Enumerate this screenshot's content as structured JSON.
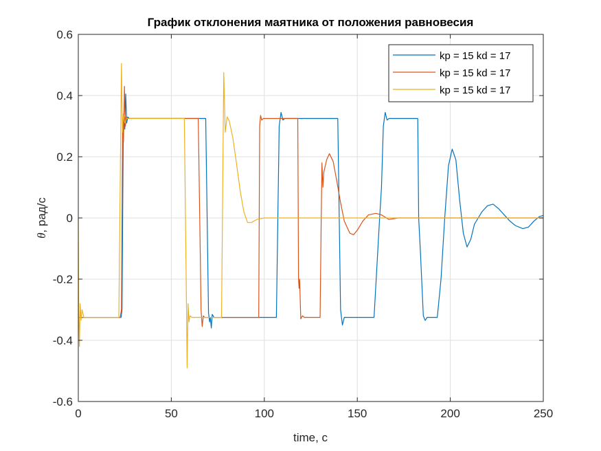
{
  "chart_data": {
    "type": "line",
    "title": "График отклонения маятника от положения равновесия",
    "xlabel": "time, c",
    "ylabel_symbol": "θ",
    "ylabel_rest": ", рад/с",
    "xlim": [
      0,
      250
    ],
    "ylim": [
      -0.6,
      0.6
    ],
    "xticks": [
      0,
      50,
      100,
      150,
      200,
      250
    ],
    "xtick_labels": [
      "0",
      "50",
      "100",
      "150",
      "200",
      "250"
    ],
    "yticks": [
      -0.6,
      -0.4,
      -0.2,
      0,
      0.2,
      0.4,
      0.6
    ],
    "ytick_labels": [
      "-0.6",
      "-0.4",
      "-0.2",
      "0",
      "0.2",
      "0.4",
      "0.6"
    ],
    "grid": true,
    "legend_position": "top-right",
    "series": [
      {
        "name": "kp = 15 kd = 17",
        "color": "#0072BD",
        "points": [
          [
            0,
            -0.325
          ],
          [
            23,
            -0.325
          ],
          [
            23.5,
            -0.3
          ],
          [
            24.2,
            0.3
          ],
          [
            24.6,
            0.33
          ],
          [
            25.0,
            0.29
          ],
          [
            25.5,
            0.405
          ],
          [
            26.0,
            0.31
          ],
          [
            26.6,
            0.33
          ],
          [
            27.5,
            0.325
          ],
          [
            68.5,
            0.325
          ],
          [
            70.0,
            -0.31
          ],
          [
            70.6,
            -0.34
          ],
          [
            71.0,
            -0.325
          ],
          [
            71.5,
            -0.36
          ],
          [
            72.0,
            -0.315
          ],
          [
            73.0,
            -0.325
          ],
          [
            106.5,
            -0.325
          ],
          [
            108.0,
            0.3
          ],
          [
            109.0,
            0.345
          ],
          [
            110.0,
            0.32
          ],
          [
            111.0,
            0.325
          ],
          [
            139.5,
            0.325
          ],
          [
            141.0,
            -0.3
          ],
          [
            142.0,
            -0.35
          ],
          [
            143.0,
            -0.325
          ],
          [
            159.0,
            -0.325
          ],
          [
            162.0,
            0.0
          ],
          [
            163.0,
            0.1
          ],
          [
            164.0,
            0.3
          ],
          [
            165.0,
            0.345
          ],
          [
            166.0,
            0.32
          ],
          [
            167.0,
            0.325
          ],
          [
            182.5,
            0.325
          ],
          [
            183.0,
            0.0
          ],
          [
            183.5,
            -0.06
          ],
          [
            184.0,
            -0.12
          ],
          [
            185.5,
            -0.32
          ],
          [
            186.5,
            -0.335
          ],
          [
            187.5,
            -0.325
          ],
          [
            193.0,
            -0.325
          ],
          [
            195.0,
            -0.2
          ],
          [
            197.0,
            0.0
          ],
          [
            199.0,
            0.17
          ],
          [
            201.0,
            0.225
          ],
          [
            203.0,
            0.19
          ],
          [
            205.0,
            0.06
          ],
          [
            207.0,
            -0.05
          ],
          [
            209.0,
            -0.095
          ],
          [
            211.0,
            -0.07
          ],
          [
            213.0,
            -0.02
          ],
          [
            215.0,
            0.0
          ],
          [
            217.0,
            0.02
          ],
          [
            220.0,
            0.04
          ],
          [
            223.0,
            0.045
          ],
          [
            226.0,
            0.03
          ],
          [
            229.0,
            0.01
          ],
          [
            232.0,
            -0.01
          ],
          [
            235.0,
            -0.025
          ],
          [
            239.0,
            -0.035
          ],
          [
            242.0,
            -0.03
          ],
          [
            245.0,
            -0.01
          ],
          [
            248.0,
            0.005
          ],
          [
            250.0,
            0.008
          ]
        ]
      },
      {
        "name": "kp = 15 kd = 17",
        "color": "#D95319",
        "points": [
          [
            0,
            -0.325
          ],
          [
            22.5,
            -0.325
          ],
          [
            23.2,
            -0.3
          ],
          [
            23.8,
            0.3
          ],
          [
            24.3,
            0.25
          ],
          [
            24.8,
            0.43
          ],
          [
            25.3,
            0.3
          ],
          [
            25.8,
            0.33
          ],
          [
            27.0,
            0.325
          ],
          [
            64.5,
            0.325
          ],
          [
            66.0,
            -0.3
          ],
          [
            66.6,
            -0.355
          ],
          [
            67.2,
            -0.32
          ],
          [
            68.0,
            -0.325
          ],
          [
            97.0,
            -0.325
          ],
          [
            97.5,
            0.3
          ],
          [
            98.0,
            0.335
          ],
          [
            98.6,
            0.32
          ],
          [
            99.5,
            0.325
          ],
          [
            118.0,
            0.325
          ],
          [
            118.4,
            -0.2
          ],
          [
            118.7,
            -0.23
          ],
          [
            119.0,
            -0.2
          ],
          [
            119.6,
            -0.33
          ],
          [
            120.5,
            -0.32
          ],
          [
            121.5,
            -0.325
          ],
          [
            130.0,
            -0.325
          ],
          [
            130.6,
            0.0
          ],
          [
            131.0,
            0.18
          ],
          [
            131.5,
            0.1
          ],
          [
            132.0,
            0.15
          ],
          [
            133.5,
            0.19
          ],
          [
            135.0,
            0.21
          ],
          [
            137.0,
            0.185
          ],
          [
            139.0,
            0.12
          ],
          [
            141.0,
            0.05
          ],
          [
            143.0,
            -0.01
          ],
          [
            146.0,
            -0.05
          ],
          [
            148.0,
            -0.055
          ],
          [
            150.0,
            -0.04
          ],
          [
            153.0,
            -0.01
          ],
          [
            156.0,
            0.01
          ],
          [
            160.0,
            0.015
          ],
          [
            163.0,
            0.01
          ],
          [
            167.0,
            -0.005
          ],
          [
            172.0,
            0.0
          ],
          [
            250.0,
            0.0
          ]
        ]
      },
      {
        "name": "kp = 15 kd = 17",
        "color": "#EDB120",
        "points": [
          [
            0,
            0.0
          ],
          [
            0.2,
            -0.3
          ],
          [
            0.6,
            -0.42
          ],
          [
            1.0,
            -0.28
          ],
          [
            1.5,
            -0.335
          ],
          [
            2.0,
            -0.3
          ],
          [
            3.0,
            -0.325
          ],
          [
            21.8,
            -0.325
          ],
          [
            22.5,
            0.1
          ],
          [
            23.2,
            0.505
          ],
          [
            23.7,
            0.28
          ],
          [
            24.2,
            0.34
          ],
          [
            25.0,
            0.31
          ],
          [
            26.0,
            0.325
          ],
          [
            57.0,
            0.325
          ],
          [
            58.0,
            -0.2
          ],
          [
            58.5,
            -0.49
          ],
          [
            59.0,
            -0.28
          ],
          [
            59.5,
            -0.34
          ],
          [
            60.0,
            -0.32
          ],
          [
            61.0,
            -0.325
          ],
          [
            77.0,
            -0.325
          ],
          [
            77.5,
            0.0
          ],
          [
            78.2,
            0.475
          ],
          [
            79.0,
            0.28
          ],
          [
            80.0,
            0.33
          ],
          [
            81.0,
            0.32
          ],
          [
            83.0,
            0.265
          ],
          [
            85.0,
            0.18
          ],
          [
            87.0,
            0.09
          ],
          [
            89.0,
            0.02
          ],
          [
            91.0,
            -0.015
          ],
          [
            93.0,
            -0.015
          ],
          [
            96.0,
            -0.005
          ],
          [
            100.0,
            0.0
          ],
          [
            250.0,
            0.0
          ]
        ]
      }
    ]
  }
}
